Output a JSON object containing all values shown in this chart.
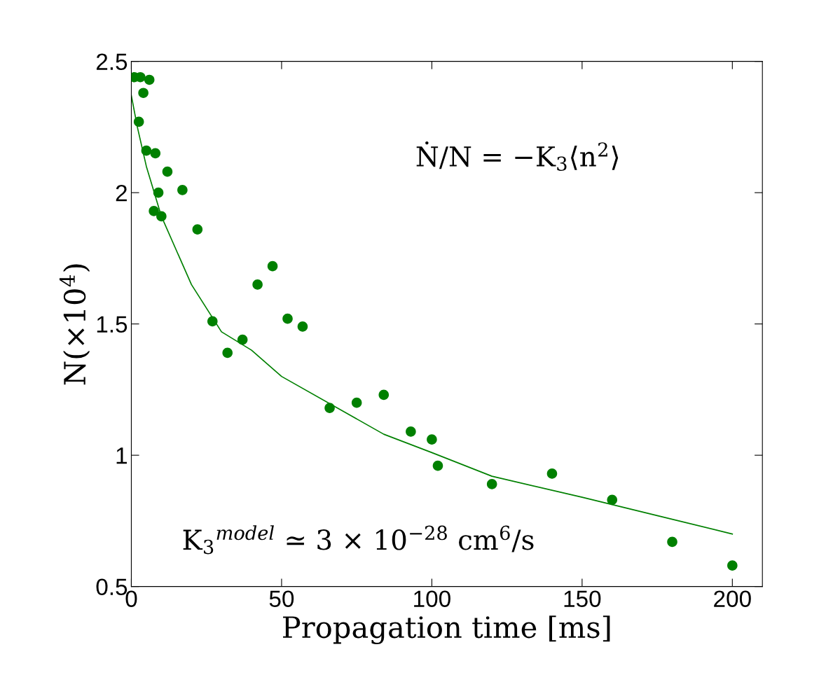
{
  "chart_data": {
    "type": "scatter",
    "xlabel": "Propagation time [ms]",
    "ylabel": "N(×10$^{4}$)",
    "xlim": [
      0,
      210
    ],
    "xticks": [
      0,
      50,
      100,
      150,
      200
    ],
    "ylim": [
      0.5,
      2.5
    ],
    "yticks": [
      0.5,
      1,
      1.5,
      2,
      2.5
    ],
    "grid": false,
    "annotations": [
      "Ṅ/N = −K$_{3}$⟨n$^{2}$⟩",
      "K$_{3}$$^{model}$ ≃ 3 × 10$^{−28}$ cm$^{6}$/s"
    ],
    "series": [
      {
        "color": "#008000",
        "marker": "circle",
        "x": [
          1,
          3,
          6,
          2.5,
          4,
          5,
          8,
          7.5,
          9,
          10,
          12,
          17,
          22,
          27,
          32,
          37,
          42,
          47,
          52,
          57,
          66,
          75,
          84,
          93,
          100,
          102,
          120,
          140,
          160,
          180,
          200
        ],
        "values": [
          2.44,
          2.44,
          2.43,
          2.27,
          2.38,
          2.16,
          2.15,
          1.93,
          2.0,
          1.91,
          2.08,
          2.01,
          1.86,
          1.51,
          1.39,
          1.44,
          1.65,
          1.72,
          1.52,
          1.49,
          1.18,
          1.2,
          1.23,
          1.09,
          1.06,
          0.96,
          0.89,
          0.93,
          0.83,
          0.67,
          0.58
        ]
      },
      {
        "type": "line",
        "color": "#008000",
        "marker": "none",
        "x": [
          0,
          2,
          5,
          10,
          20,
          30,
          40,
          50,
          84,
          100,
          120,
          150,
          175,
          200
        ],
        "values": [
          2.37,
          2.25,
          2.1,
          1.91,
          1.65,
          1.47,
          1.4,
          1.3,
          1.08,
          1.01,
          0.92,
          0.84,
          0.77,
          0.7
        ]
      }
    ]
  }
}
